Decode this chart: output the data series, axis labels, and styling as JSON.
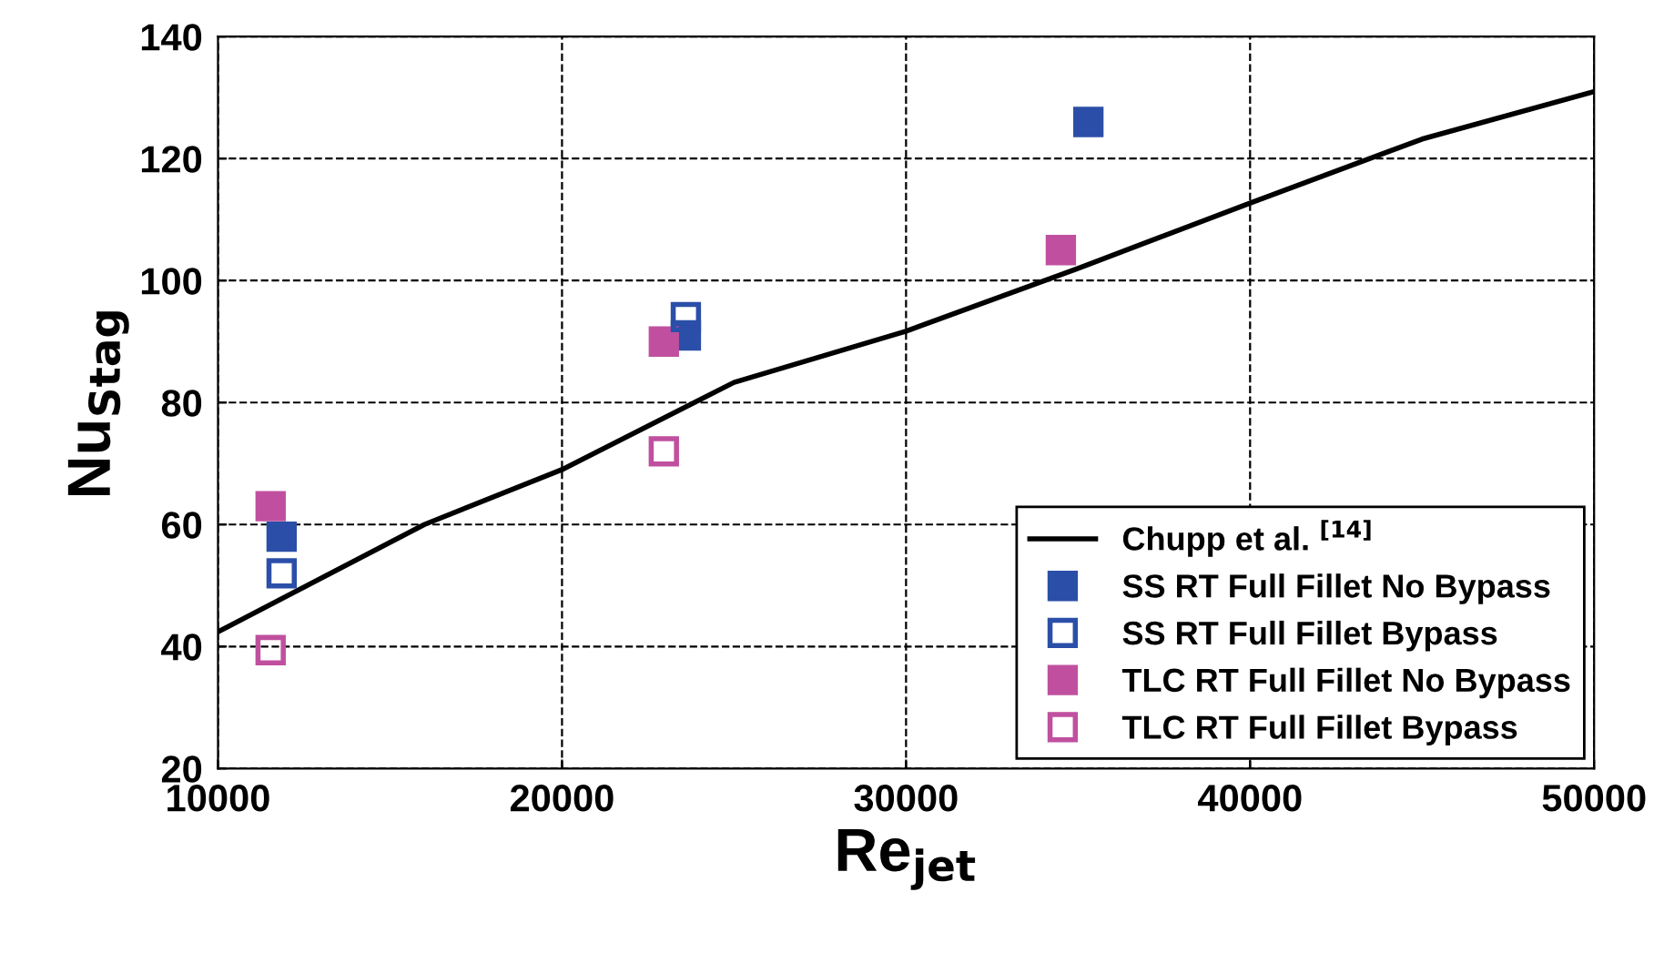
{
  "chart_data": {
    "type": "scatter",
    "xlabel": "Re$_{jet}$",
    "ylabel": "Nu$_{Stag}$",
    "xlim": [
      10000,
      50000
    ],
    "xticks": [
      10000,
      20000,
      30000,
      40000,
      50000
    ],
    "ylim": [
      20,
      140
    ],
    "yticks": [
      20,
      40,
      60,
      80,
      100,
      120,
      140
    ],
    "grid": true,
    "legend": "bottom right",
    "marker": "square",
    "series": [
      {
        "name": "Chupp et al. $^{[14]}$",
        "type": "line",
        "color": "#000000",
        "marker": "none",
        "line_style": "solid",
        "x": [
          10000,
          16000,
          20000,
          25000,
          30000,
          35000,
          40000,
          45000,
          50000
        ],
        "values": [
          42.4,
          60,
          69,
          83.3,
          91.7,
          102,
          112.7,
          123.2,
          131
        ]
      },
      {
        "name": "SS RT Full Fillet No Bypass",
        "color": "#2b4fa8",
        "x": [
          11850,
          23600,
          35300
        ],
        "values": [
          58,
          91,
          126
        ]
      },
      {
        "name": "SS RT Full Fillet Bypass",
        "color": "#2b4fa8",
        "x": [
          11850,
          23600
        ],
        "values": [
          52,
          94
        ]
      },
      {
        "name": "TLC RT Full Fillet No Bypass",
        "color": "#c0509f",
        "x": [
          11530,
          22960,
          34500
        ],
        "values": [
          63,
          90,
          105
        ]
      },
      {
        "name": "TLC RT Full Fillet Bypass",
        "color": "#c0509f",
        "x": [
          11530,
          22960
        ],
        "values": [
          39.4,
          72
        ]
      }
    ]
  }
}
